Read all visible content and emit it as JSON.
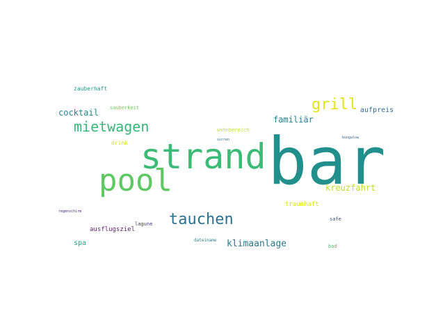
{
  "chart_data": {
    "type": "wordcloud",
    "words": [
      {
        "text": "bar",
        "color": "#21908c"
      },
      {
        "text": "strand",
        "color": "#3bbb75"
      },
      {
        "text": "pool",
        "color": "#5ec962"
      },
      {
        "text": "mietwagen",
        "color": "#35b779"
      },
      {
        "text": "tauchen",
        "color": "#2c728e"
      },
      {
        "text": "grill",
        "color": "#e2e418"
      },
      {
        "text": "kreuzfahrt",
        "color": "#bddf26"
      },
      {
        "text": "cocktail",
        "color": "#23898e"
      },
      {
        "text": "familiär",
        "color": "#277f8e"
      },
      {
        "text": "klimaanlage",
        "color": "#2a788e"
      },
      {
        "text": "aufpreis",
        "color": "#31688e"
      },
      {
        "text": "ausflugsziel",
        "color": "#5d1f6e"
      },
      {
        "text": "spa",
        "color": "#20a386"
      },
      {
        "text": "zauberhaft",
        "color": "#1f9e89"
      },
      {
        "text": "drink",
        "color": "#d8e219"
      },
      {
        "text": "traumhaft",
        "color": "#dde318"
      },
      {
        "text": "sauberkeit",
        "color": "#6ece58"
      },
      {
        "text": "wohnbereich",
        "color": "#c2df23"
      },
      {
        "text": "lagune",
        "color": "#453781"
      },
      {
        "text": "safe",
        "color": "#3e4989"
      },
      {
        "text": "bad",
        "color": "#4ac16d"
      },
      {
        "text": "dateiname",
        "color": "#26828e"
      },
      {
        "text": "surren",
        "color": "#2e6e8e"
      },
      {
        "text": "regenschirm",
        "color": "#482677"
      },
      {
        "text": "bungalow",
        "color": "#33638d"
      }
    ]
  }
}
